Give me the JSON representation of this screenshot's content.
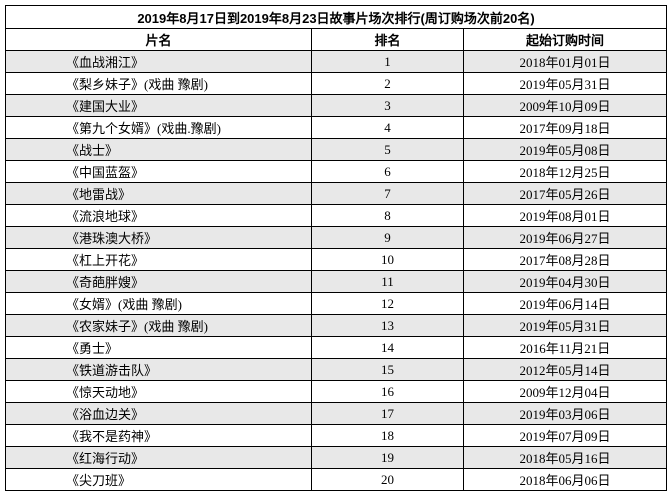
{
  "chart_data": {
    "type": "table",
    "title": "2019年8月17日到2019年8月23日故事片场次排行(周订购场次前20名)",
    "columns": [
      "片名",
      "排名",
      "起始订购时间"
    ],
    "rows": [
      {
        "name": "《血战湘江》",
        "rank": "1",
        "date": "2018年01月01日"
      },
      {
        "name": "《梨乡妹子》(戏曲 豫剧)",
        "rank": "2",
        "date": "2019年05月31日"
      },
      {
        "name": "《建国大业》",
        "rank": "3",
        "date": "2009年10月09日"
      },
      {
        "name": "《第九个女婿》(戏曲.豫剧)",
        "rank": "4",
        "date": "2017年09月18日"
      },
      {
        "name": "《战士》",
        "rank": "5",
        "date": "2019年05月08日"
      },
      {
        "name": "《中国蓝盔》",
        "rank": "6",
        "date": "2018年12月25日"
      },
      {
        "name": "《地雷战》",
        "rank": "7",
        "date": "2017年05月26日"
      },
      {
        "name": "《流浪地球》",
        "rank": "8",
        "date": "2019年08月01日"
      },
      {
        "name": "《港珠澳大桥》",
        "rank": "9",
        "date": "2019年06月27日"
      },
      {
        "name": "《杠上开花》",
        "rank": "10",
        "date": "2017年08月28日"
      },
      {
        "name": "《奇葩胖嫂》",
        "rank": "11",
        "date": "2019年04月30日"
      },
      {
        "name": "《女婿》(戏曲 豫剧)",
        "rank": "12",
        "date": "2019年06月14日"
      },
      {
        "name": "《农家妹子》(戏曲 豫剧)",
        "rank": "13",
        "date": "2019年05月31日"
      },
      {
        "name": "《勇士》",
        "rank": "14",
        "date": "2016年11月21日"
      },
      {
        "name": "《铁道游击队》",
        "rank": "15",
        "date": "2012年05月14日"
      },
      {
        "name": "《惊天动地》",
        "rank": "16",
        "date": "2009年12月04日"
      },
      {
        "name": "《浴血边关》",
        "rank": "17",
        "date": "2019年03月06日"
      },
      {
        "name": "《我不是药神》",
        "rank": "18",
        "date": "2019年07月09日"
      },
      {
        "name": "《红海行动》",
        "rank": "19",
        "date": "2018年05月16日"
      },
      {
        "name": "《尖刀班》",
        "rank": "20",
        "date": "2018年06月06日"
      }
    ],
    "layout": {
      "striped_rows": "odd",
      "stripe_color": "#e8e8e8",
      "border_color": "#000000",
      "background_color": "#ffffff"
    }
  }
}
